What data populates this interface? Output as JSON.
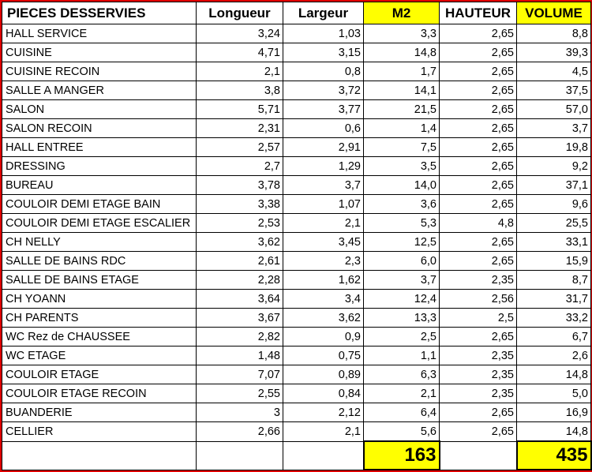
{
  "colors": {
    "frame": "#e00000",
    "highlight": "#ffff00",
    "grid": "#000000"
  },
  "headers": {
    "piece": "PIECES DESSERVIES",
    "longueur": "Longueur",
    "largeur": "Largeur",
    "m2": "M2",
    "hauteur": "HAUTEUR",
    "volume": "VOLUME"
  },
  "rows": [
    {
      "piece": "HALL SERVICE",
      "longueur": "3,24",
      "largeur": "1,03",
      "m2": "3,3",
      "hauteur": "2,65",
      "volume": "8,8"
    },
    {
      "piece": "CUISINE",
      "longueur": "4,71",
      "largeur": "3,15",
      "m2": "14,8",
      "hauteur": "2,65",
      "volume": "39,3"
    },
    {
      "piece": "CUISINE RECOIN",
      "longueur": "2,1",
      "largeur": "0,8",
      "m2": "1,7",
      "hauteur": "2,65",
      "volume": "4,5"
    },
    {
      "piece": "SALLE A MANGER",
      "longueur": "3,8",
      "largeur": "3,72",
      "m2": "14,1",
      "hauteur": "2,65",
      "volume": "37,5"
    },
    {
      "piece": "SALON",
      "longueur": "5,71",
      "largeur": "3,77",
      "m2": "21,5",
      "hauteur": "2,65",
      "volume": "57,0"
    },
    {
      "piece": "SALON RECOIN",
      "longueur": "2,31",
      "largeur": "0,6",
      "m2": "1,4",
      "hauteur": "2,65",
      "volume": "3,7"
    },
    {
      "piece": "HALL ENTREE",
      "longueur": "2,57",
      "largeur": "2,91",
      "m2": "7,5",
      "hauteur": "2,65",
      "volume": "19,8"
    },
    {
      "piece": "DRESSING",
      "longueur": "2,7",
      "largeur": "1,29",
      "m2": "3,5",
      "hauteur": "2,65",
      "volume": "9,2"
    },
    {
      "piece": "BUREAU",
      "longueur": "3,78",
      "largeur": "3,7",
      "m2": "14,0",
      "hauteur": "2,65",
      "volume": "37,1"
    },
    {
      "piece": "COULOIR DEMI ETAGE BAIN",
      "longueur": "3,38",
      "largeur": "1,07",
      "m2": "3,6",
      "hauteur": "2,65",
      "volume": "9,6"
    },
    {
      "piece": "COULOIR DEMI ETAGE ESCALIER",
      "longueur": "2,53",
      "largeur": "2,1",
      "m2": "5,3",
      "hauteur": "4,8",
      "volume": "25,5"
    },
    {
      "piece": "CH NELLY",
      "longueur": "3,62",
      "largeur": "3,45",
      "m2": "12,5",
      "hauteur": "2,65",
      "volume": "33,1"
    },
    {
      "piece": "SALLE DE BAINS RDC",
      "longueur": "2,61",
      "largeur": "2,3",
      "m2": "6,0",
      "hauteur": "2,65",
      "volume": "15,9"
    },
    {
      "piece": "SALLE DE BAINS ETAGE",
      "longueur": "2,28",
      "largeur": "1,62",
      "m2": "3,7",
      "hauteur": "2,35",
      "volume": "8,7"
    },
    {
      "piece": "CH YOANN",
      "longueur": "3,64",
      "largeur": "3,4",
      "m2": "12,4",
      "hauteur": "2,56",
      "volume": "31,7"
    },
    {
      "piece": "CH PARENTS",
      "longueur": "3,67",
      "largeur": "3,62",
      "m2": "13,3",
      "hauteur": "2,5",
      "volume": "33,2"
    },
    {
      "piece": "WC Rez de CHAUSSEE",
      "longueur": "2,82",
      "largeur": "0,9",
      "m2": "2,5",
      "hauteur": "2,65",
      "volume": "6,7"
    },
    {
      "piece": "WC ETAGE",
      "longueur": "1,48",
      "largeur": "0,75",
      "m2": "1,1",
      "hauteur": "2,35",
      "volume": "2,6"
    },
    {
      "piece": "COULOIR ETAGE",
      "longueur": "7,07",
      "largeur": "0,89",
      "m2": "6,3",
      "hauteur": "2,35",
      "volume": "14,8"
    },
    {
      "piece": "COULOIR ETAGE RECOIN",
      "longueur": "2,55",
      "largeur": "0,84",
      "m2": "2,1",
      "hauteur": "2,35",
      "volume": "5,0"
    },
    {
      "piece": "BUANDERIE",
      "longueur": "3",
      "largeur": "2,12",
      "m2": "6,4",
      "hauteur": "2,65",
      "volume": "16,9"
    },
    {
      "piece": "CELLIER",
      "longueur": "2,66",
      "largeur": "2,1",
      "m2": "5,6",
      "hauteur": "2,65",
      "volume": "14,8"
    }
  ],
  "totals": {
    "m2": "163",
    "volume": "435"
  }
}
